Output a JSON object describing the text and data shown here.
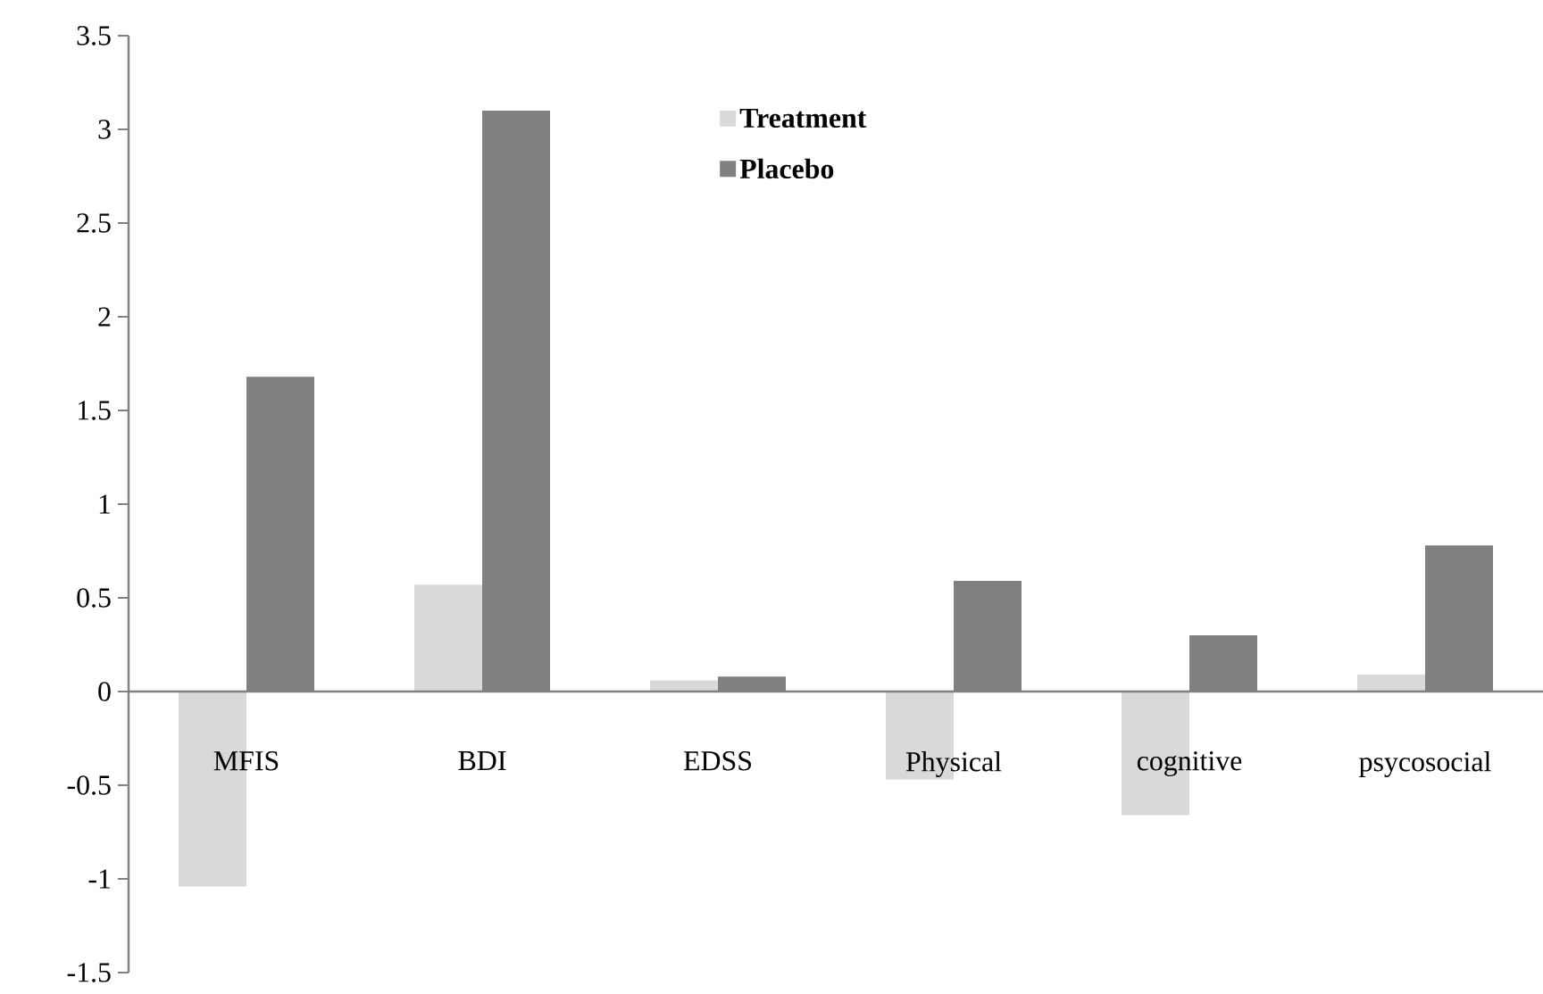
{
  "chart_data": {
    "type": "bar",
    "categories": [
      "MFIS",
      "BDI",
      "EDSS",
      "Physical",
      "cognitive",
      "psycosocial"
    ],
    "series": [
      {
        "name": "Treatment",
        "color": "#d9d9d9",
        "values": [
          -1.04,
          0.57,
          0.06,
          -0.47,
          -0.66,
          0.09
        ]
      },
      {
        "name": "Placebo",
        "color": "#808080",
        "values": [
          1.68,
          3.1,
          0.08,
          0.59,
          0.3,
          0.78
        ]
      }
    ],
    "ylim": [
      -1.5,
      3.5
    ],
    "yticks": [
      -1.5,
      -1,
      -0.5,
      0,
      0.5,
      1,
      1.5,
      2,
      2.5,
      3,
      3.5
    ],
    "grid": false,
    "legend": "top"
  }
}
